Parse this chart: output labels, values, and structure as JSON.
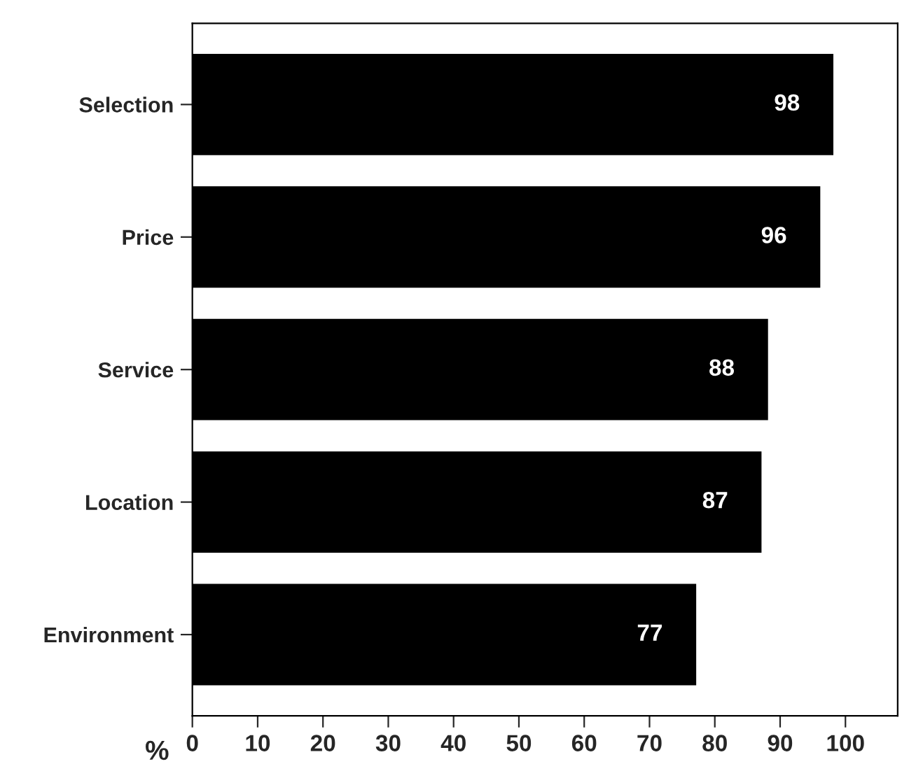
{
  "chart_data": {
    "type": "bar",
    "orientation": "horizontal",
    "xlabel": "%",
    "categories": [
      "Selection",
      "Price",
      "Service",
      "Location",
      "Environment"
    ],
    "values": [
      98,
      96,
      88,
      87,
      77
    ],
    "color": "#000000",
    "data_labels": true,
    "xlim": [
      0,
      108
    ],
    "xticks": [
      0,
      10,
      20,
      30,
      40,
      50,
      60,
      70,
      80,
      90,
      100
    ],
    "grid": false
  }
}
